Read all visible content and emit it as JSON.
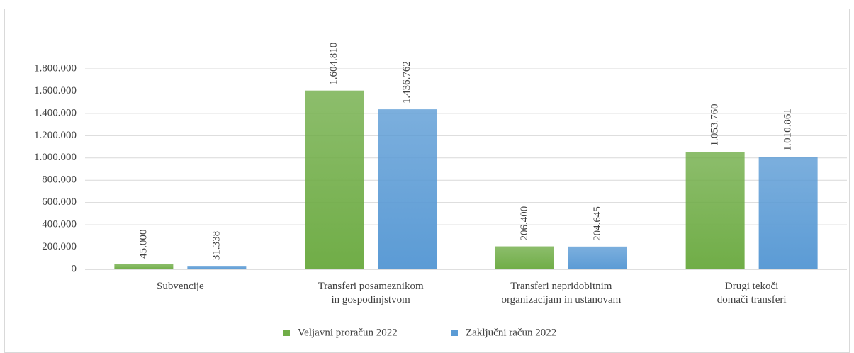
{
  "chart_data": {
    "type": "bar",
    "categories": [
      "Subvencije",
      "Transferi posameznikom\nin gospodinjstvom",
      "Transferi nepridobitnim\norganizacijam in ustanovam",
      "Drugi tekoči\ndomači transferi"
    ],
    "series": [
      {
        "name": "Veljavni proračun 2022",
        "color": "#70ad47",
        "values": [
          45000,
          1604810,
          206400,
          1053760
        ],
        "value_labels": [
          "45.000",
          "1.604.810",
          "206.400",
          "1.053.760"
        ]
      },
      {
        "name": "Zaključni račun 2022",
        "color": "#5b9bd5",
        "values": [
          31338,
          1436762,
          204645,
          1010861
        ],
        "value_labels": [
          "31.338",
          "1.436.762",
          "204.645",
          "1.010.861"
        ]
      }
    ],
    "ylim": [
      0,
      1800000
    ],
    "yticks": [
      0,
      {
        "value": 200000,
        "label": "200.000"
      },
      {
        "value": 400000,
        "label": "400.000"
      },
      {
        "value": 600000,
        "label": "600.000"
      },
      {
        "value": 800000,
        "label": "800.000"
      },
      {
        "value": 1000000,
        "label": "1.000.000"
      },
      {
        "value": 1200000,
        "label": "1.200.000"
      },
      {
        "value": 1400000,
        "label": "1.400.000"
      },
      {
        "value": 1600000,
        "label": "1.600.000"
      },
      {
        "value": 1800000,
        "label": "1.800.000"
      }
    ],
    "grid": true,
    "legend": "bottom"
  }
}
